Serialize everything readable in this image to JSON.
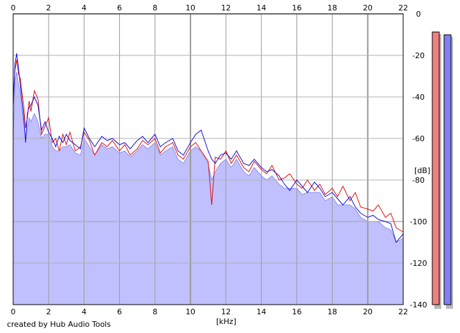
{
  "app": {
    "credit": "created by Hub Audio Tools"
  },
  "chart_data": {
    "type": "line",
    "xlabel": "[kHz]",
    "ylabel": "[dB]",
    "xlim": [
      0,
      22
    ],
    "ylim": [
      -140,
      0
    ],
    "x_ticks": [
      0,
      2,
      4,
      6,
      8,
      10,
      12,
      14,
      16,
      18,
      20,
      22
    ],
    "y_ticks": [
      0,
      -20,
      -40,
      -60,
      -80,
      -100,
      -120,
      -140
    ],
    "grid": true,
    "fill_color": "#c0c0ff",
    "fill_edge_color": "#8f8fe8",
    "series": [
      {
        "color": "#e01010",
        "x": [
          0,
          0.1,
          0.2,
          0.3,
          0.4,
          0.5,
          0.6,
          0.7,
          0.8,
          0.9,
          1.0,
          1.2,
          1.4,
          1.6,
          1.8,
          2.0,
          2.2,
          2.4,
          2.6,
          2.8,
          3.0,
          3.2,
          3.5,
          3.8,
          4.0,
          4.3,
          4.6,
          5.0,
          5.3,
          5.6,
          6.0,
          6.3,
          6.6,
          7.0,
          7.3,
          7.6,
          8.0,
          8.3,
          8.6,
          9.0,
          9.3,
          9.6,
          10.0,
          10.3,
          10.6,
          11.0,
          11.2,
          11.4,
          11.7,
          12.0,
          12.3,
          12.6,
          13.0,
          13.3,
          13.6,
          14.0,
          14.3,
          14.6,
          15.0,
          15.3,
          15.6,
          16.0,
          16.3,
          16.6,
          17.0,
          17.3,
          17.6,
          18.0,
          18.3,
          18.6,
          19.0,
          19.3,
          19.6,
          20.0,
          20.3,
          20.6,
          21.0,
          21.3,
          21.6,
          22.0
        ],
        "values": [
          -40,
          -27,
          -22,
          -29,
          -31,
          -38,
          -45,
          -55,
          -50,
          -42,
          -47,
          -37,
          -41,
          -58,
          -54,
          -50,
          -62,
          -60,
          -66,
          -58,
          -63,
          -57,
          -66,
          -64,
          -57,
          -61,
          -68,
          -62,
          -64,
          -61,
          -66,
          -63,
          -68,
          -65,
          -61,
          -63,
          -60,
          -67,
          -64,
          -62,
          -68,
          -70,
          -64,
          -62,
          -66,
          -71,
          -92,
          -69,
          -70,
          -66,
          -72,
          -68,
          -74,
          -76,
          -71,
          -75,
          -77,
          -73,
          -80,
          -79,
          -77,
          -82,
          -84,
          -80,
          -85,
          -82,
          -87,
          -84,
          -88,
          -83,
          -90,
          -86,
          -93,
          -94,
          -95,
          -92,
          -98,
          -96,
          -103,
          -105
        ]
      },
      {
        "color": "#1010e0",
        "x": [
          0,
          0.1,
          0.2,
          0.3,
          0.4,
          0.5,
          0.6,
          0.7,
          0.8,
          0.9,
          1.0,
          1.2,
          1.4,
          1.6,
          1.8,
          2.0,
          2.2,
          2.4,
          2.6,
          2.8,
          3.0,
          3.2,
          3.5,
          3.8,
          4.0,
          4.3,
          4.6,
          5.0,
          5.3,
          5.6,
          6.0,
          6.3,
          6.6,
          7.0,
          7.3,
          7.6,
          8.0,
          8.3,
          8.6,
          9.0,
          9.3,
          9.6,
          10.0,
          10.3,
          10.6,
          11.0,
          11.2,
          11.4,
          11.7,
          12.0,
          12.3,
          12.6,
          13.0,
          13.3,
          13.6,
          14.0,
          14.3,
          14.6,
          15.0,
          15.3,
          15.6,
          16.0,
          16.3,
          16.6,
          17.0,
          17.3,
          17.6,
          18.0,
          18.3,
          18.6,
          19.0,
          19.3,
          19.6,
          20.0,
          20.3,
          20.6,
          21.0,
          21.3,
          21.6,
          22.0
        ],
        "values": [
          -45,
          -24,
          -19,
          -26,
          -34,
          -42,
          -50,
          -62,
          -48,
          -45,
          -44,
          -40,
          -44,
          -56,
          -52,
          -57,
          -60,
          -64,
          -59,
          -62,
          -58,
          -61,
          -63,
          -65,
          -55,
          -60,
          -64,
          -59,
          -61,
          -60,
          -63,
          -62,
          -65,
          -61,
          -59,
          -62,
          -58,
          -64,
          -62,
          -60,
          -66,
          -68,
          -62,
          -58,
          -56,
          -66,
          -70,
          -72,
          -68,
          -67,
          -70,
          -66,
          -72,
          -73,
          -70,
          -74,
          -76,
          -75,
          -78,
          -82,
          -85,
          -80,
          -83,
          -86,
          -81,
          -84,
          -88,
          -86,
          -89,
          -92,
          -88,
          -93,
          -96,
          -98,
          -97,
          -99,
          -100,
          -101,
          -110,
          -106
        ]
      }
    ],
    "fill": {
      "x": [
        0,
        0.1,
        0.2,
        0.3,
        0.4,
        0.5,
        0.6,
        0.7,
        0.8,
        0.9,
        1.0,
        1.2,
        1.4,
        1.6,
        1.8,
        2.0,
        2.2,
        2.4,
        2.6,
        2.8,
        3.0,
        3.2,
        3.5,
        3.8,
        4.0,
        4.3,
        4.6,
        5.0,
        5.3,
        5.6,
        6.0,
        6.3,
        6.6,
        7.0,
        7.3,
        7.6,
        8.0,
        8.3,
        8.6,
        9.0,
        9.3,
        9.6,
        10.0,
        10.3,
        10.6,
        11.0,
        11.2,
        11.4,
        11.7,
        12.0,
        12.3,
        12.6,
        13.0,
        13.3,
        13.6,
        14.0,
        14.3,
        14.6,
        15.0,
        15.3,
        15.6,
        16.0,
        16.3,
        16.6,
        17.0,
        17.3,
        17.6,
        18.0,
        18.3,
        18.6,
        19.0,
        19.3,
        19.6,
        20.0,
        20.3,
        20.6,
        21.0,
        21.3,
        21.6,
        22.0
      ],
      "values": [
        -60,
        -32,
        -28,
        -34,
        -38,
        -46,
        -53,
        -60,
        -55,
        -50,
        -52,
        -48,
        -52,
        -60,
        -58,
        -58,
        -64,
        -66,
        -66,
        -64,
        -64,
        -63,
        -67,
        -68,
        -60,
        -64,
        -68,
        -63,
        -65,
        -64,
        -67,
        -66,
        -69,
        -66,
        -63,
        -65,
        -62,
        -68,
        -66,
        -64,
        -70,
        -72,
        -66,
        -64,
        -66,
        -72,
        -80,
        -76,
        -72,
        -70,
        -74,
        -70,
        -76,
        -78,
        -74,
        -78,
        -80,
        -78,
        -82,
        -84,
        -84,
        -84,
        -87,
        -86,
        -86,
        -86,
        -90,
        -88,
        -92,
        -92,
        -92,
        -94,
        -98,
        -100,
        -100,
        -100,
        -103,
        -104,
        -110,
        -108
      ]
    }
  },
  "meters": [
    {
      "name": "left-channel-level-meter",
      "color": "#f08080",
      "level": 0.97
    },
    {
      "name": "right-channel-level-meter",
      "color": "#8080f0",
      "level": 0.96
    }
  ]
}
